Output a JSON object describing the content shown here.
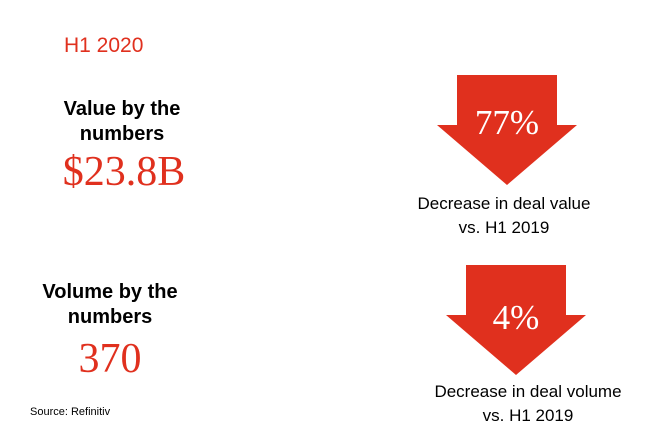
{
  "period": "H1 2020",
  "value_block": {
    "label_line1": "Value by the",
    "label_line2": "numbers",
    "amount": "$23.8B"
  },
  "volume_block": {
    "label_line1": "Volume by the",
    "label_line2": "numbers",
    "amount": "370"
  },
  "value_change": {
    "percent": "77%",
    "desc_line1": "Decrease in deal value",
    "desc_line2": "vs. H1 2019",
    "icon": "down-arrow-icon"
  },
  "volume_change": {
    "percent": "4%",
    "desc_line1": "Decrease in deal volume",
    "desc_line2": "vs. H1 2019",
    "icon": "down-arrow-icon"
  },
  "source": "Source: Refinitiv",
  "colors": {
    "accent": "#e0301e",
    "text": "#000000",
    "background": "#ffffff"
  }
}
